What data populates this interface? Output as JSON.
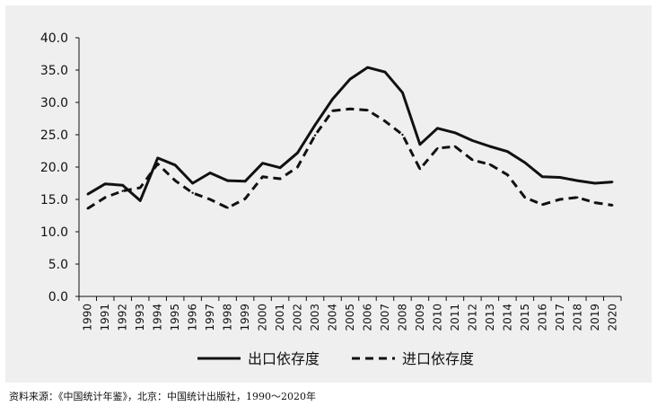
{
  "chart_data": {
    "type": "line",
    "x": [
      "1990",
      "1991",
      "1992",
      "1993",
      "1994",
      "1995",
      "1996",
      "1997",
      "1998",
      "1999",
      "2000",
      "2001",
      "2002",
      "2003",
      "2004",
      "2005",
      "2006",
      "2007",
      "2008",
      "2009",
      "2010",
      "2011",
      "2012",
      "2013",
      "2014",
      "2015",
      "2016",
      "2017",
      "2018",
      "2019",
      "2020"
    ],
    "series": [
      {
        "name": "出口依存度",
        "style": "solid",
        "color": "#111111",
        "values": [
          15.8,
          17.4,
          17.2,
          14.8,
          21.4,
          20.3,
          17.5,
          19.1,
          17.9,
          17.8,
          20.6,
          19.9,
          22.2,
          26.5,
          30.5,
          33.6,
          35.4,
          34.7,
          31.5,
          23.5,
          26.0,
          25.3,
          24.1,
          23.2,
          22.4,
          20.7,
          18.5,
          18.4,
          17.9,
          17.5,
          17.7
        ]
      },
      {
        "name": "进口依存度",
        "style": "dashed",
        "color": "#111111",
        "values": [
          13.6,
          15.3,
          16.3,
          16.8,
          20.5,
          17.9,
          16.0,
          15.0,
          13.7,
          15.1,
          18.5,
          18.2,
          20.0,
          24.9,
          28.7,
          29.0,
          28.8,
          27.1,
          25.0,
          19.7,
          22.9,
          23.2,
          21.1,
          20.4,
          18.8,
          15.3,
          14.2,
          15.0,
          15.3,
          14.5,
          14.1
        ]
      }
    ],
    "yticks": [
      "0.0",
      "5.0",
      "10.0",
      "15.0",
      "20.0",
      "25.0",
      "30.0",
      "35.0",
      "40.0"
    ],
    "ylim": [
      0,
      40
    ],
    "title": "",
    "xlabel": "",
    "ylabel": "",
    "grid": false,
    "legend_position": "bottom-center"
  },
  "source_note": "资料来源：《中国统计年鉴》，北京：中国统计出版社，1990～2020年"
}
